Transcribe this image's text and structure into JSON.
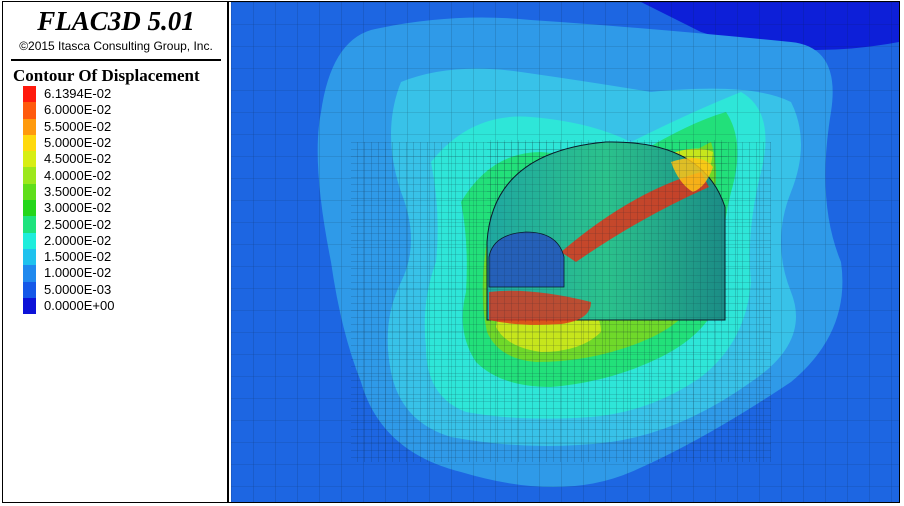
{
  "app": {
    "title": "FLAC3D 5.01",
    "copyright": "©2015 Itasca Consulting Group, Inc."
  },
  "legend": {
    "title": "Contour Of Displacement",
    "items": [
      {
        "label": "6.1394E-02",
        "color": "#ff1a0d"
      },
      {
        "label": "6.0000E-02",
        "color": "#ff5a0d"
      },
      {
        "label": "5.5000E-02",
        "color": "#ff9a0d"
      },
      {
        "label": "5.0000E-02",
        "color": "#ffd90d"
      },
      {
        "label": "4.5000E-02",
        "color": "#d7ee14"
      },
      {
        "label": "4.0000E-02",
        "color": "#9ce81c"
      },
      {
        "label": "3.5000E-02",
        "color": "#5fde1a"
      },
      {
        "label": "3.0000E-02",
        "color": "#24d61a"
      },
      {
        "label": "2.5000E-02",
        "color": "#1ee37d"
      },
      {
        "label": "2.0000E-02",
        "color": "#1feddc"
      },
      {
        "label": "1.5000E-02",
        "color": "#1fc2ee"
      },
      {
        "label": "1.0000E-02",
        "color": "#2089ee"
      },
      {
        "label": "5.0000E-03",
        "color": "#1558e8"
      },
      {
        "label": "0.0000E+00",
        "color": "#0d12d8"
      }
    ]
  },
  "contour_colors": {
    "background": "#1d66e2",
    "band_1": "#2f9ae8",
    "band_2": "#38c2e8",
    "band_3": "#2ee6d8",
    "band_4": "#22e07a",
    "band_5": "#6fd92a",
    "band_6": "#c6e61c",
    "band_7": "#ffc315",
    "band_8": "#e0321a",
    "top_low": "#0d1fd8",
    "mesh": "#0a1a2a"
  }
}
